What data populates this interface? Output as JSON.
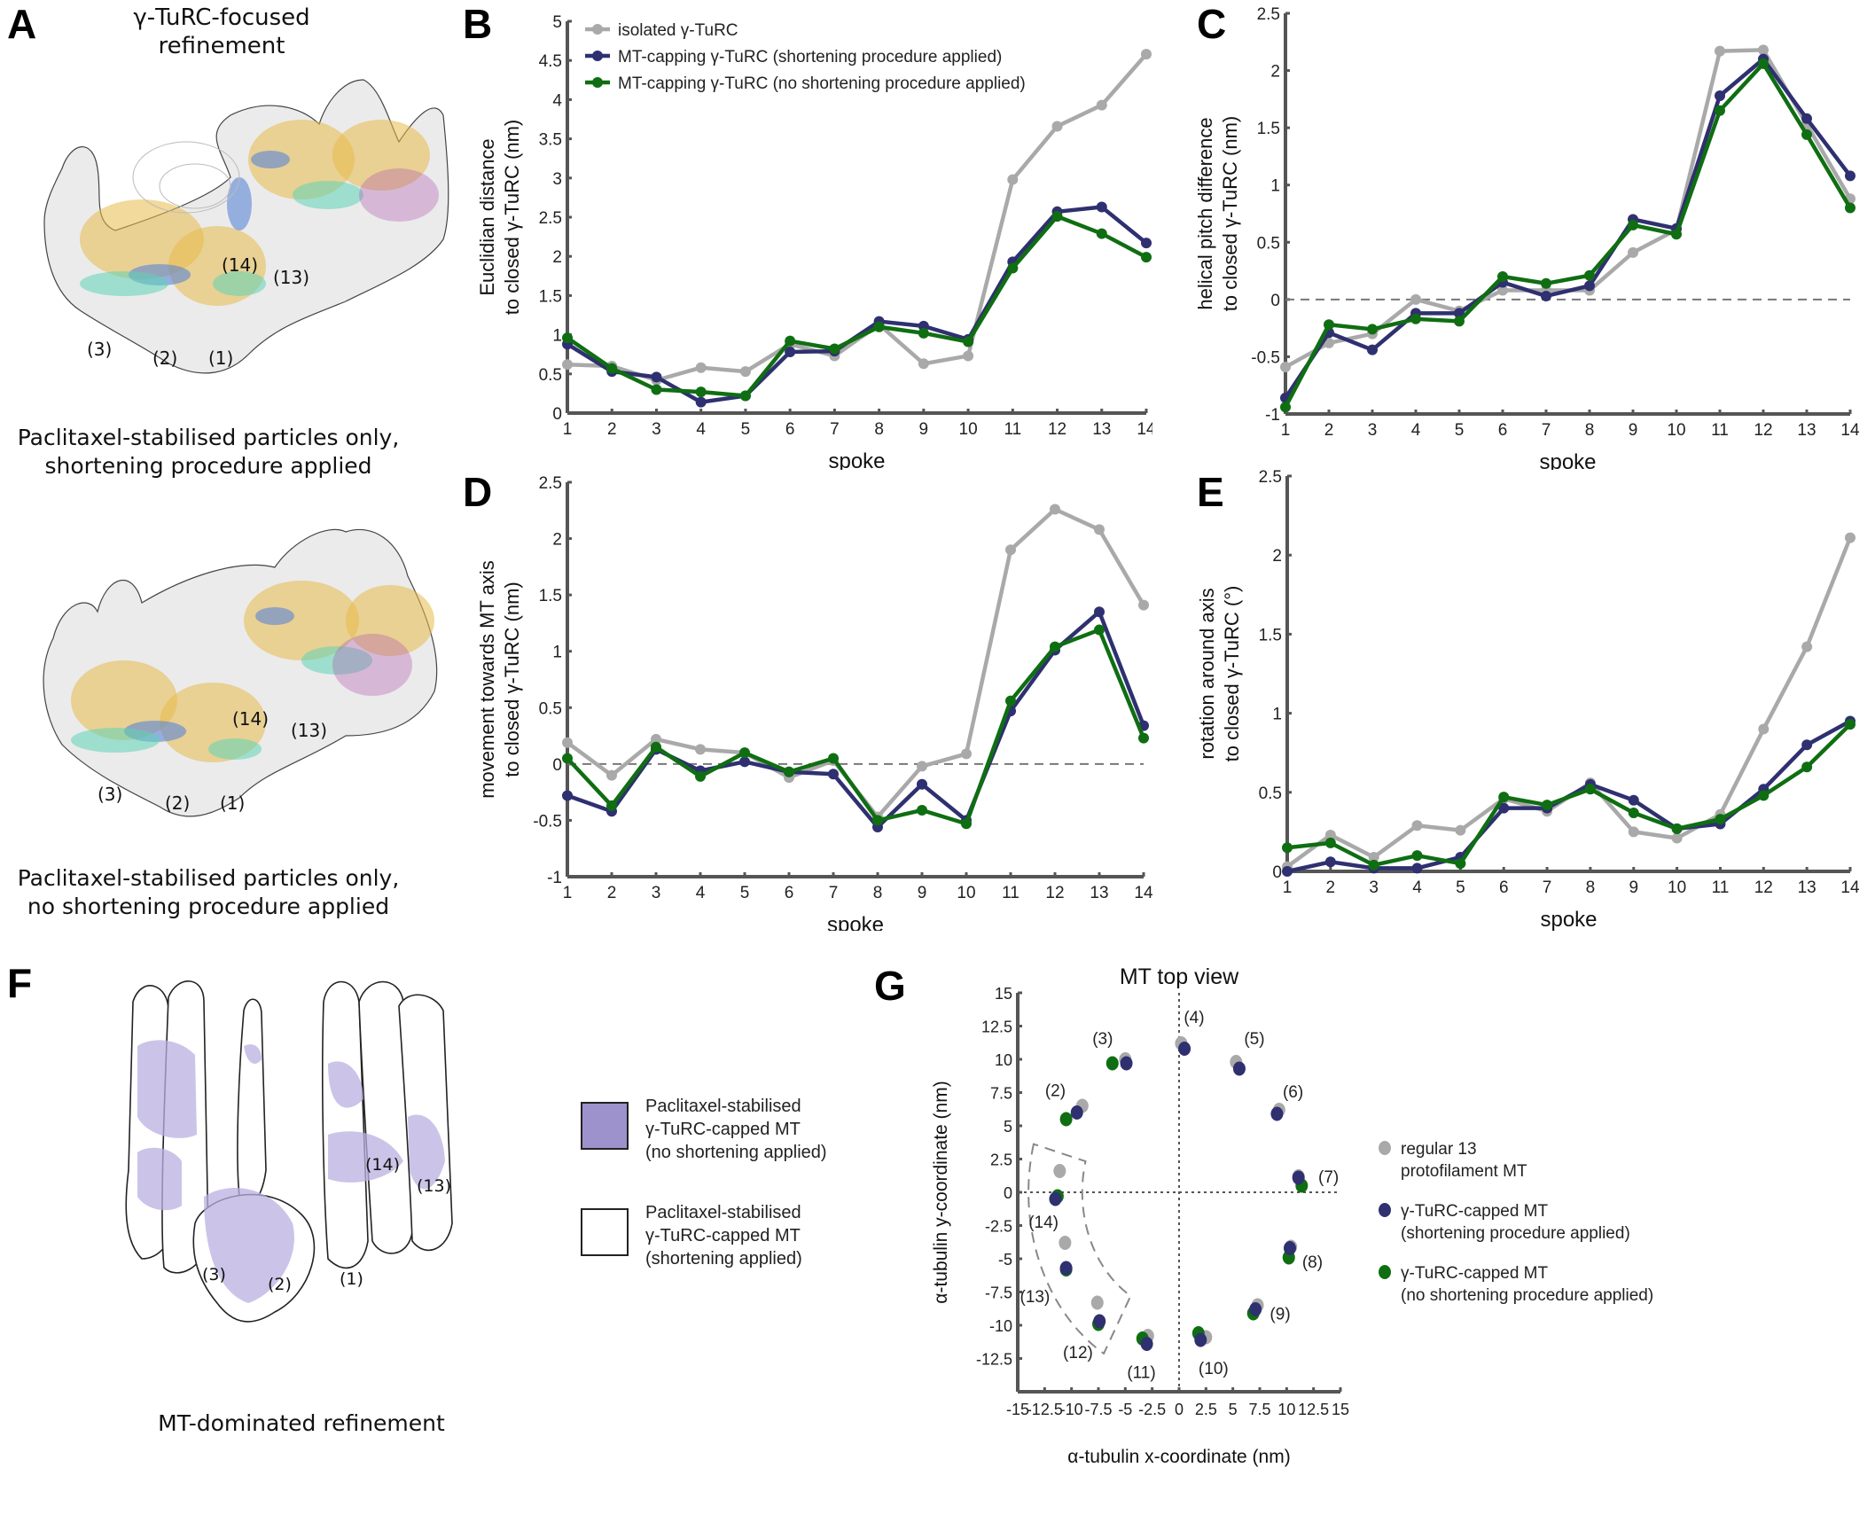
{
  "panels": {
    "A": {
      "letter": "A",
      "title_line1": "γ-TuRC-focused",
      "title_line2": "refinement",
      "caption_top_line1": "Paclitaxel-stabilised particles only,",
      "caption_top_line2": "shortening procedure applied",
      "caption_bottom_line1": "Paclitaxel-stabilised particles only,",
      "caption_bottom_line2": "no shortening procedure applied",
      "spoke_labels_top": [
        "(14)",
        "(13)",
        "(3)",
        "(2)",
        "(1)"
      ],
      "spoke_labels_bottom": [
        "(14)",
        "(13)",
        "(3)",
        "(2)",
        "(1)"
      ]
    },
    "F": {
      "letter": "F",
      "caption": "MT-dominated refinement",
      "spoke_labels": [
        "(14)",
        "(13)",
        "(3)",
        "(2)",
        "(1)"
      ],
      "legend": [
        {
          "line1": "Paclitaxel-stabilised",
          "line2": "γ-TuRC-capped MT",
          "line3": "(no shortening applied)",
          "color": "#9d92cc"
        },
        {
          "line1": "Paclitaxel-stabilised",
          "line2": "γ-TuRC-capped MT",
          "line3": "(shortening applied)",
          "color": "#ffffff"
        }
      ]
    }
  },
  "colors": {
    "isolated": "#a9a9a9",
    "shortening": "#2e3070",
    "no_shortening": "#0f6e12",
    "axis": "#555555",
    "purple_map": "#b9b0e0"
  },
  "chart_data": [
    {
      "id": "B",
      "type": "line",
      "letter": "B",
      "title": "",
      "xlabel": "spoke",
      "ylabel_line1": "Euclidian distance",
      "ylabel_line2": "to closed γ-TuRC (nm)",
      "x": [
        1,
        2,
        3,
        4,
        5,
        6,
        7,
        8,
        9,
        10,
        11,
        12,
        13,
        14
      ],
      "ylim": [
        0,
        5
      ],
      "yticks": [
        "0",
        "0.5",
        "1",
        "1.5",
        "2",
        "2.5",
        "3",
        "3.5",
        "4",
        "4.5",
        "5"
      ],
      "zero_line": false,
      "legend_position": "top-left",
      "series": [
        {
          "name": "isolated γ-TuRC",
          "key": "isolated",
          "values": [
            0.62,
            0.6,
            0.42,
            0.58,
            0.53,
            0.88,
            0.73,
            1.13,
            0.63,
            0.73,
            2.98,
            3.66,
            3.93,
            4.58
          ]
        },
        {
          "name": "MT-capping γ-TuRC (shortening procedure applied)",
          "key": "shortening",
          "values": [
            0.88,
            0.53,
            0.46,
            0.14,
            0.22,
            0.78,
            0.79,
            1.17,
            1.11,
            0.94,
            1.93,
            2.57,
            2.63,
            2.17
          ]
        },
        {
          "name": "MT-capping γ-TuRC (no shortening procedure applied)",
          "key": "no_shortening",
          "values": [
            0.96,
            0.57,
            0.3,
            0.27,
            0.22,
            0.92,
            0.82,
            1.1,
            1.02,
            0.91,
            1.85,
            2.51,
            2.29,
            1.99
          ]
        }
      ]
    },
    {
      "id": "C",
      "type": "line",
      "letter": "C",
      "xlabel": "spoke",
      "ylabel_line1": "helical pitch difference",
      "ylabel_line2": "to closed γ-TuRC (nm)",
      "x": [
        1,
        2,
        3,
        4,
        5,
        6,
        7,
        8,
        9,
        10,
        11,
        12,
        13,
        14
      ],
      "ylim": [
        -1,
        2.5
      ],
      "yticks": [
        "-1",
        "-0.5",
        "0",
        "0.5",
        "1",
        "1.5",
        "2",
        "2.5"
      ],
      "zero_line": true,
      "series": [
        {
          "name": "isolated γ-TuRC",
          "key": "isolated",
          "values": [
            -0.59,
            -0.38,
            -0.3,
            0.0,
            -0.1,
            0.08,
            0.08,
            0.08,
            0.41,
            0.61,
            2.17,
            2.18,
            1.53,
            0.88
          ]
        },
        {
          "name": "MT-capping γ-TuRC (shortening procedure applied)",
          "key": "shortening",
          "values": [
            -0.86,
            -0.29,
            -0.44,
            -0.12,
            -0.12,
            0.15,
            0.03,
            0.12,
            0.7,
            0.62,
            1.78,
            2.1,
            1.58,
            1.08
          ]
        },
        {
          "name": "MT-capping γ-TuRC (no shortening procedure applied)",
          "key": "no_shortening",
          "values": [
            -0.94,
            -0.22,
            -0.26,
            -0.17,
            -0.19,
            0.2,
            0.14,
            0.21,
            0.65,
            0.57,
            1.65,
            2.06,
            1.44,
            0.8
          ]
        }
      ]
    },
    {
      "id": "D",
      "type": "line",
      "letter": "D",
      "xlabel": "spoke",
      "ylabel_line1": "movement towards MT axis",
      "ylabel_line2": "to closed γ-TuRC (nm)",
      "x": [
        1,
        2,
        3,
        4,
        5,
        6,
        7,
        8,
        9,
        10,
        11,
        12,
        13,
        14
      ],
      "ylim": [
        -1,
        2.5
      ],
      "yticks": [
        "-1",
        "-0.5",
        "0",
        "0.5",
        "1",
        "1.5",
        "2",
        "2.5"
      ],
      "zero_line": true,
      "series": [
        {
          "name": "isolated γ-TuRC",
          "key": "isolated",
          "values": [
            0.19,
            -0.1,
            0.22,
            0.13,
            0.1,
            -0.12,
            0.03,
            -0.47,
            -0.02,
            0.09,
            1.9,
            2.26,
            2.08,
            1.41
          ]
        },
        {
          "name": "MT-capping γ-TuRC (shortening procedure applied)",
          "key": "shortening",
          "values": [
            -0.28,
            -0.42,
            0.13,
            -0.06,
            0.02,
            -0.07,
            -0.09,
            -0.56,
            -0.18,
            -0.5,
            0.47,
            1.01,
            1.35,
            0.34
          ]
        },
        {
          "name": "MT-capping γ-TuRC (no shortening procedure applied)",
          "key": "no_shortening",
          "values": [
            0.05,
            -0.37,
            0.15,
            -0.11,
            0.1,
            -0.07,
            0.05,
            -0.5,
            -0.41,
            -0.53,
            0.56,
            1.04,
            1.19,
            0.23
          ]
        }
      ]
    },
    {
      "id": "E",
      "type": "line",
      "letter": "E",
      "xlabel": "spoke",
      "ylabel_line1": "rotation around axis",
      "ylabel_line2": "to closed γ-TuRC (°)",
      "x": [
        1,
        2,
        3,
        4,
        5,
        6,
        7,
        8,
        9,
        10,
        11,
        12,
        13,
        14
      ],
      "ylim": [
        0,
        2.5
      ],
      "yticks": [
        "0",
        "0.5",
        "1",
        "1.5",
        "2",
        "2.5"
      ],
      "zero_line": false,
      "series": [
        {
          "name": "isolated γ-TuRC",
          "key": "isolated",
          "values": [
            0.03,
            0.23,
            0.09,
            0.29,
            0.26,
            0.46,
            0.38,
            0.56,
            0.25,
            0.21,
            0.36,
            0.9,
            1.42,
            2.11
          ]
        },
        {
          "name": "MT-capping γ-TuRC (shortening procedure applied)",
          "key": "shortening",
          "values": [
            0.0,
            0.06,
            0.02,
            0.02,
            0.09,
            0.4,
            0.4,
            0.55,
            0.45,
            0.27,
            0.3,
            0.52,
            0.8,
            0.95
          ]
        },
        {
          "name": "MT-capping γ-TuRC (no shortening procedure applied)",
          "key": "no_shortening",
          "values": [
            0.15,
            0.18,
            0.04,
            0.1,
            0.05,
            0.47,
            0.42,
            0.52,
            0.37,
            0.27,
            0.33,
            0.48,
            0.66,
            0.93
          ]
        }
      ]
    },
    {
      "id": "G",
      "type": "scatter",
      "letter": "G",
      "title": "MT top view",
      "xlabel": "α-tubulin x-coordinate (nm)",
      "ylabel": "α-tubulin y-coordinate (nm)",
      "xlim": [
        -15,
        15
      ],
      "ylim": [
        -15,
        15
      ],
      "xticks": [
        "-15",
        "-12.5",
        "-10",
        "-7.5",
        "-5",
        "-2.5",
        "0",
        "2.5",
        "5",
        "7.5",
        "10",
        "12.5",
        "15"
      ],
      "yticks": [
        "-12.5",
        "-10",
        "-7.5",
        "-5",
        "-2.5",
        "0",
        "2.5",
        "5",
        "7.5",
        "10",
        "12.5",
        "15"
      ],
      "legend_position": "right",
      "legend": [
        {
          "key": "isolated",
          "line1": "regular 13",
          "line2": "protofilament MT"
        },
        {
          "key": "shortening",
          "line1": "γ-TuRC-capped MT",
          "line2": "(shortening procedure applied)"
        },
        {
          "key": "no_shortening",
          "line1": "γ-TuRC-capped MT",
          "line2": "(no shortening procedure applied)"
        }
      ],
      "series": [
        {
          "name": "regular 13 protofilament MT",
          "key": "isolated",
          "points": [
            [
              -9.0,
              6.5
            ],
            [
              -5.0,
              10.0
            ],
            [
              0.2,
              11.2
            ],
            [
              5.3,
              9.8
            ],
            [
              9.3,
              6.2
            ],
            [
              11.1,
              1.2
            ],
            [
              10.4,
              -4.1
            ],
            [
              7.3,
              -8.5
            ],
            [
              2.5,
              -10.9
            ],
            [
              -2.9,
              -10.8
            ],
            [
              -7.6,
              -8.3
            ],
            [
              -10.6,
              -3.8
            ],
            [
              -11.1,
              1.6
            ]
          ]
        },
        {
          "name": "γ-TuRC-capped MT (shortening procedure applied)",
          "key": "shortening",
          "points": [
            [
              -9.5,
              6.0
            ],
            [
              -4.9,
              9.7
            ],
            [
              0.5,
              10.8
            ],
            [
              5.6,
              9.3
            ],
            [
              9.1,
              5.9
            ],
            [
              11.1,
              1.1
            ],
            [
              10.3,
              -4.2
            ],
            [
              7.1,
              -8.8
            ],
            [
              2.0,
              -11.1
            ],
            [
              -3.0,
              -11.4
            ],
            [
              -7.4,
              -9.7
            ],
            [
              -10.5,
              -5.7
            ],
            [
              -11.5,
              -0.5
            ]
          ]
        },
        {
          "name": "γ-TuRC-capped MT (no shortening procedure applied)",
          "key": "no_shortening",
          "points": [
            [
              -10.5,
              5.5
            ],
            [
              -6.2,
              9.7
            ],
            [
              11.4,
              0.5
            ],
            [
              10.2,
              -4.9
            ],
            [
              6.9,
              -9.1
            ],
            [
              1.8,
              -10.6
            ],
            [
              -3.4,
              -11.0
            ],
            [
              -7.5,
              -9.9
            ],
            [
              -10.5,
              -5.8
            ],
            [
              -11.3,
              -0.3
            ]
          ]
        }
      ],
      "spoke_labels": [
        {
          "text": "(2)",
          "x": -11.5,
          "y": 7.7
        },
        {
          "text": "(3)",
          "x": -7.1,
          "y": 11.6
        },
        {
          "text": "(4)",
          "x": 1.4,
          "y": 13.2
        },
        {
          "text": "(5)",
          "x": 7.0,
          "y": 11.6
        },
        {
          "text": "(6)",
          "x": 10.6,
          "y": 7.6
        },
        {
          "text": "(7)",
          "x": 13.9,
          "y": 1.2
        },
        {
          "text": "(8)",
          "x": 12.4,
          "y": -5.2
        },
        {
          "text": "(9)",
          "x": 9.4,
          "y": -9.1
        },
        {
          "text": "(10)",
          "x": 3.2,
          "y": -13.2
        },
        {
          "text": "(11)",
          "x": -3.5,
          "y": -13.5
        },
        {
          "text": "(12)",
          "x": -9.4,
          "y": -12.0
        },
        {
          "text": "(13)",
          "x": -13.4,
          "y": -7.8
        },
        {
          "text": "(14)",
          "x": -12.6,
          "y": -2.2
        }
      ]
    }
  ]
}
